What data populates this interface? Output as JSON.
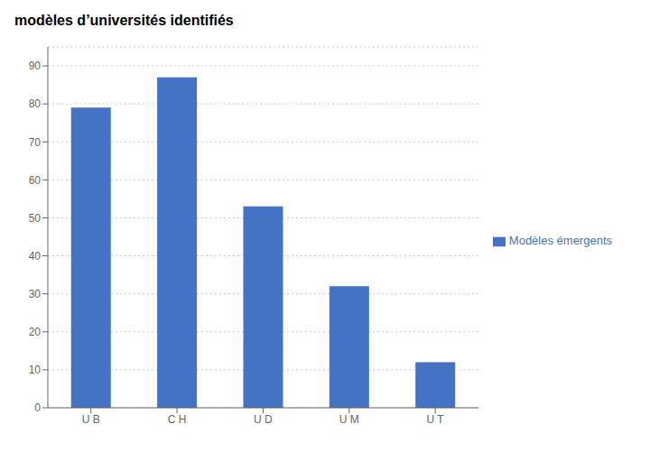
{
  "chart_data": {
    "type": "bar",
    "title": "modèles d’universités identifiés",
    "categories": [
      "U B",
      "C H",
      "U D",
      "U M",
      "U T"
    ],
    "series": [
      {
        "name": "Modèles émergents",
        "color": "#4472C4",
        "values": [
          79,
          87,
          53,
          32,
          12
        ]
      }
    ],
    "ylim": [
      0,
      95
    ],
    "yticks": [
      0,
      10,
      20,
      30,
      40,
      50,
      60,
      70,
      80,
      90
    ],
    "grid": true,
    "legend": "right"
  }
}
